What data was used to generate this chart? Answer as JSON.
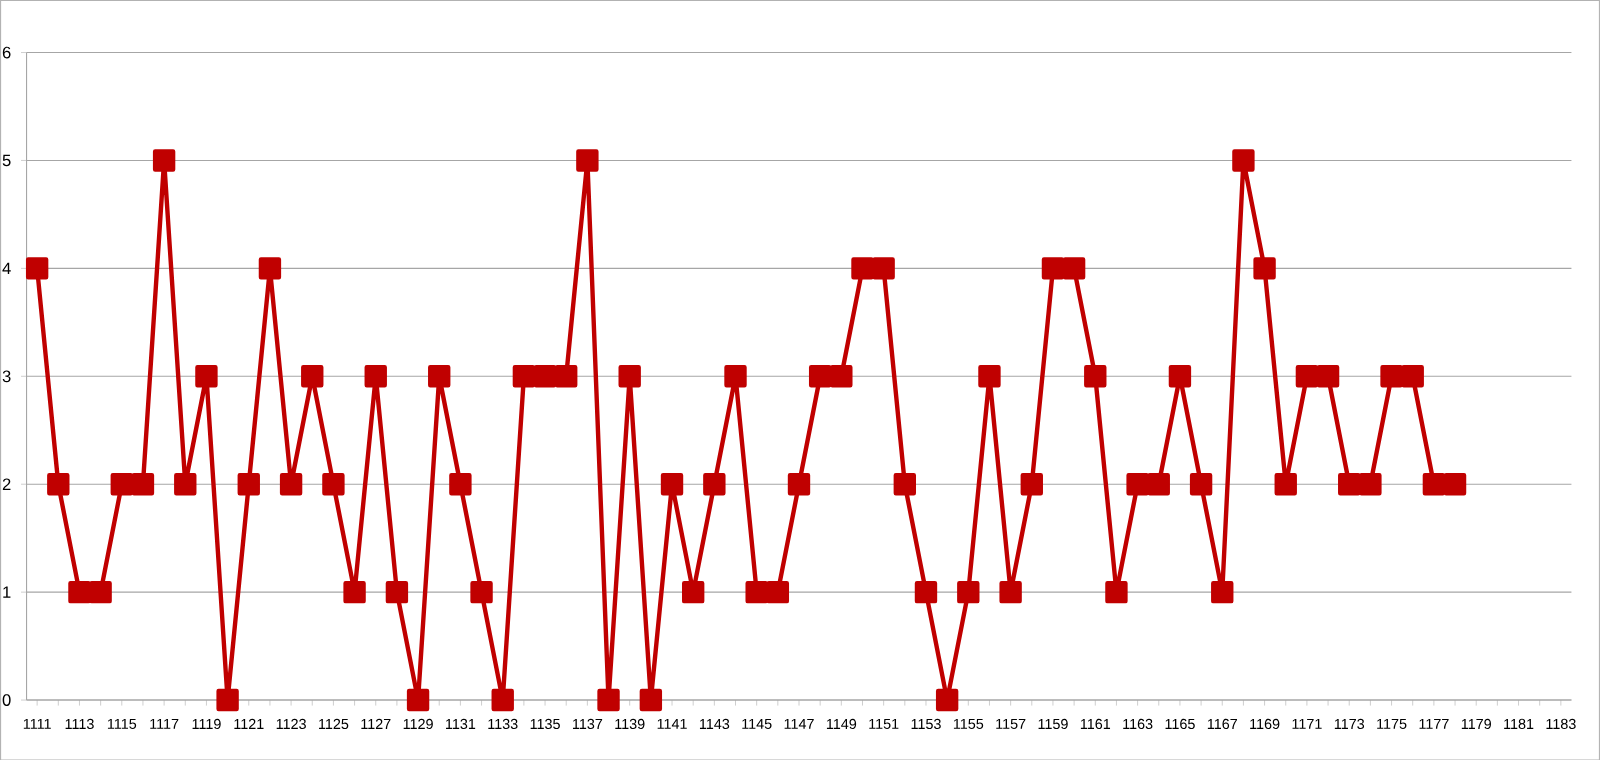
{
  "chart_data": {
    "type": "line",
    "categories": [
      "1111",
      null,
      "1113",
      null,
      "1115",
      null,
      "1117",
      null,
      "1119",
      null,
      "1121",
      null,
      "1123",
      null,
      "1125",
      null,
      "1127",
      null,
      "1129",
      null,
      "1131",
      null,
      "1133",
      null,
      "1135",
      null,
      "1137",
      null,
      "1139",
      null,
      "1141",
      null,
      "1143",
      null,
      "1145",
      null,
      "1147",
      null,
      "1149",
      null,
      "1151",
      null,
      "1153",
      null,
      "1155",
      null,
      "1157",
      null,
      "1159",
      null,
      "1161",
      null,
      "1163",
      null,
      "1165",
      null,
      "1167",
      null,
      "1169",
      null,
      "1171",
      null,
      "1173",
      null,
      "1175",
      null,
      "1177",
      null,
      "1179",
      null,
      "1181",
      null,
      "1183"
    ],
    "series": [
      {
        "color": "#c00000",
        "values": [
          4,
          2,
          1,
          1,
          2,
          2,
          5,
          2,
          3,
          0,
          2,
          4,
          2,
          3,
          2,
          1,
          3,
          1,
          0,
          3,
          2,
          1,
          0,
          3,
          3,
          3,
          5,
          0,
          3,
          0,
          2,
          1,
          2,
          3,
          1,
          1,
          2,
          3,
          3,
          4,
          4,
          2,
          1,
          0,
          1,
          3,
          1,
          2,
          4,
          4,
          3,
          1,
          2,
          2,
          3,
          2,
          1,
          5,
          4,
          2,
          3,
          3,
          2,
          2,
          3,
          3,
          2,
          2,
          null,
          null,
          null,
          null,
          null
        ]
      }
    ],
    "ylim": [
      0,
      6
    ],
    "yticks": [
      0,
      1,
      2,
      3,
      4,
      5,
      6
    ],
    "grid": "y",
    "marker": "square",
    "line_style": "solid"
  }
}
